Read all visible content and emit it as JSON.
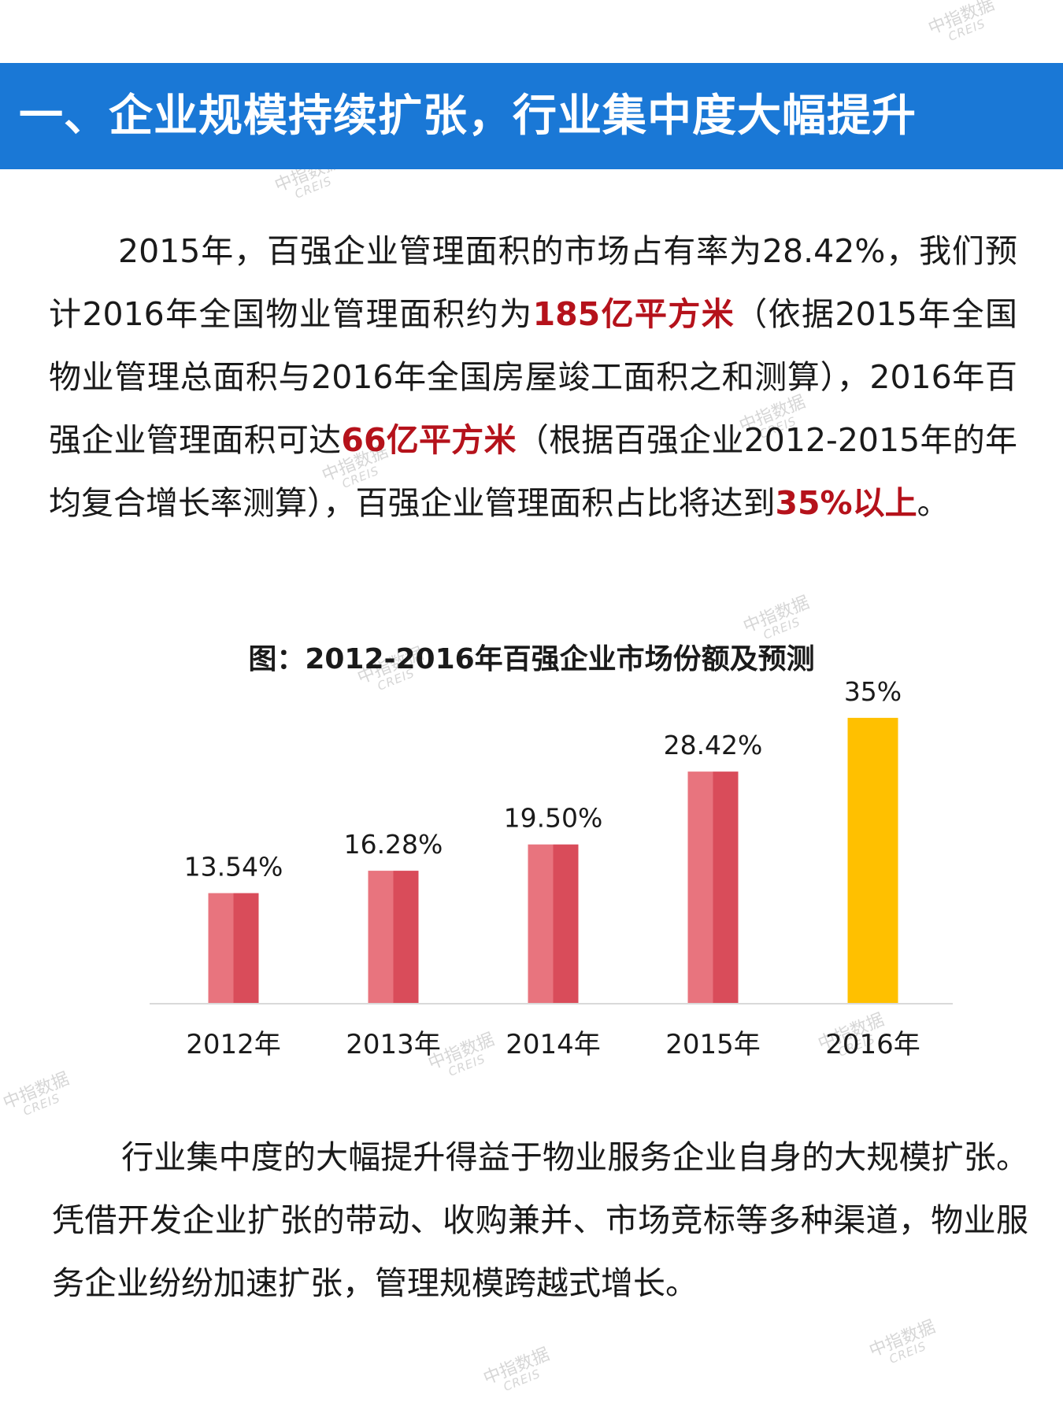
{
  "header": {
    "title": "一、企业规模持续扩张，行业集中度大幅提升"
  },
  "paragraph1": {
    "t1": "2015年，百强企业管理面积的市场占有率为28.42%，我们预计2016年全国物业管理面积约为",
    "h1": "185亿平方米",
    "t2": "（依据2015年全国物业管理总面积与2016年全国房屋竣工面积之和测算），2016年百强企业管理面积可达",
    "h2": "66亿平方米",
    "t3": "（根据百强企业2012-2015年的年均复合增长率测算），百强企业管理面积占比将达到",
    "h3": "35%以上",
    "t4": "。"
  },
  "chart_title": "图：2012-2016年百强企业市场份额及预测",
  "chart_data": {
    "type": "bar",
    "categories": [
      "2012年",
      "2013年",
      "2014年",
      "2015年",
      "2016年"
    ],
    "values": [
      13.54,
      16.28,
      19.5,
      28.42,
      35
    ],
    "value_labels": [
      "13.54%",
      "16.28%",
      "19.50%",
      "28.42%",
      "35%"
    ],
    "ylim": [
      0,
      40
    ],
    "grid": false,
    "colors": {
      "actual": "#d94c5a",
      "actual_light": "#e8747e",
      "forecast": "#ffc000"
    }
  },
  "paragraph2": {
    "text": "行业集中度的大幅提升得益于物业服务企业自身的大规模扩张。凭借开发企业扩张的带动、收购兼并、市场竞标等多种渠道，物业服务企业纷纷加速扩张，管理规模跨越式增长。"
  },
  "watermark": {
    "cn": "中指数据",
    "en": "CREIS"
  }
}
